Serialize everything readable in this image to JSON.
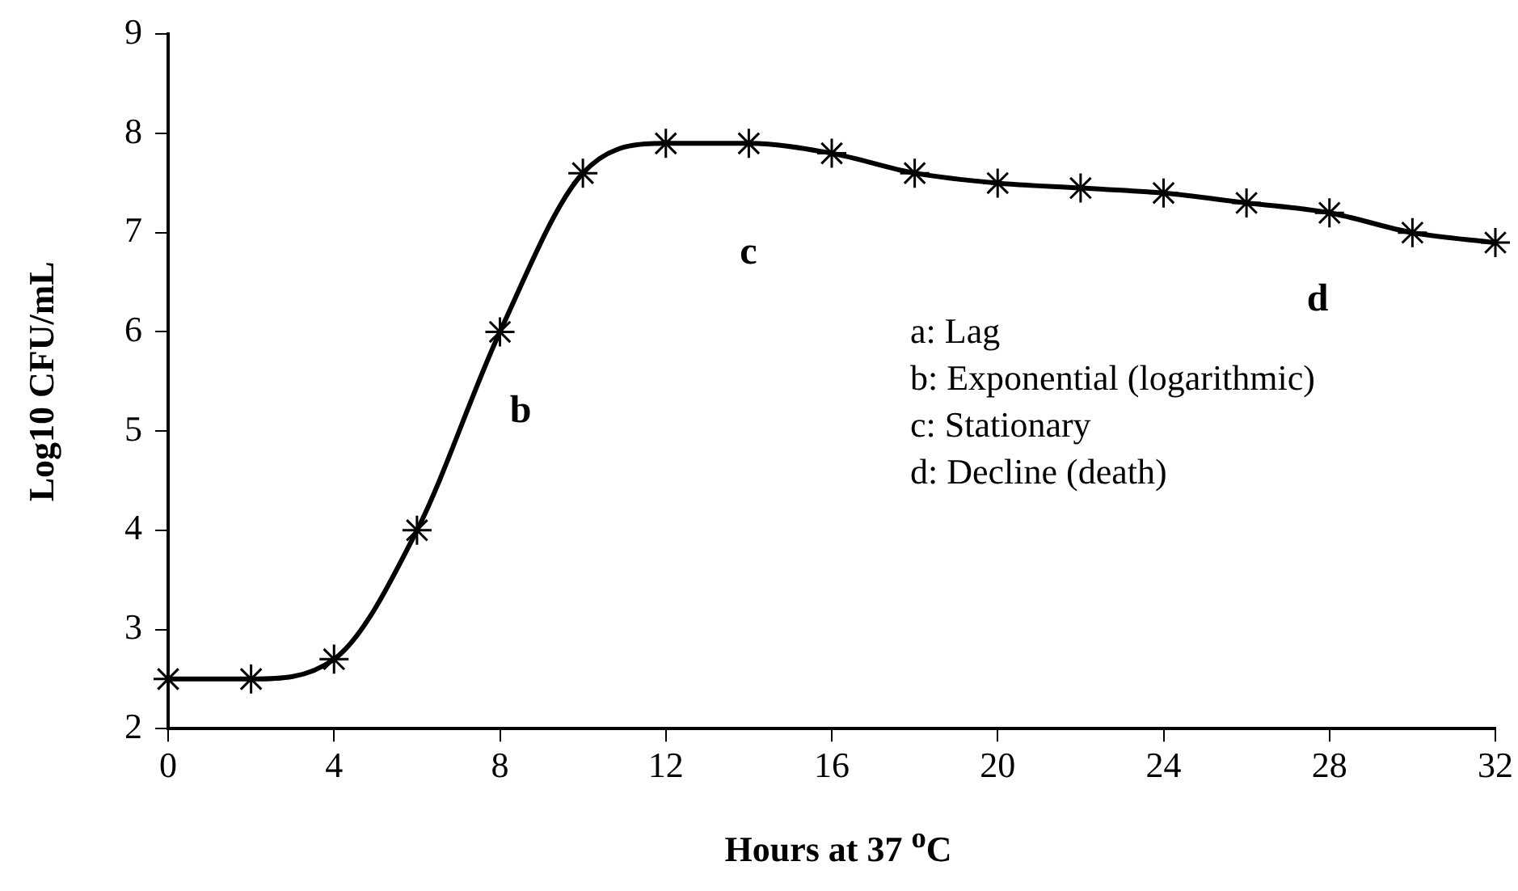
{
  "chart_data": {
    "type": "line",
    "xlabel": "Hours at 37 $^{o}$C",
    "ylabel": "Log10 CFU/mL",
    "x": [
      0,
      2,
      4,
      6,
      8,
      10,
      12,
      14,
      16,
      18,
      20,
      22,
      24,
      26,
      28,
      30,
      32
    ],
    "series": [
      {
        "color": "#000000",
        "values": [
          2.5,
          2.5,
          2.7,
          4.0,
          6.0,
          7.6,
          7.9,
          7.9,
          7.8,
          7.6,
          7.5,
          7.45,
          7.4,
          7.3,
          7.2,
          7.0,
          6.9
        ]
      }
    ],
    "xlim": [
      0,
      32
    ],
    "xticks": [
      0,
      4,
      8,
      12,
      16,
      20,
      24,
      28,
      32
    ],
    "ylim": [
      2,
      9
    ],
    "yticks": [
      2,
      3,
      4,
      5,
      6,
      7,
      8,
      9
    ],
    "grid": false,
    "legend": false,
    "marker": "cross",
    "line_style": "solid",
    "annotations": [
      "b",
      "c",
      "d",
      "a: Lag",
      "b: Exponential (logarithmic)",
      "c: Stationary",
      "d: Decline (death)"
    ]
  }
}
